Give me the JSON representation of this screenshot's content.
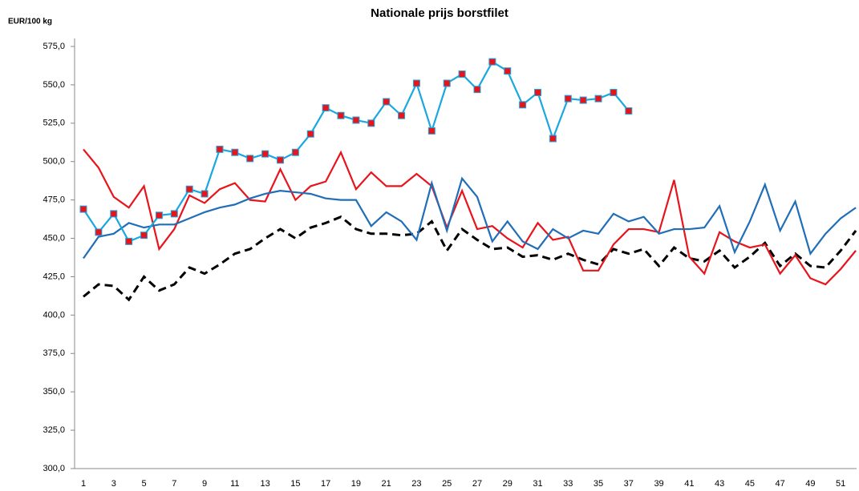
{
  "chart_data": {
    "type": "line",
    "title": "Nationale prijs borstfilet",
    "y_label": "EUR/100 kg",
    "categories": [
      1,
      null,
      3,
      null,
      5,
      null,
      7,
      null,
      9,
      null,
      11,
      null,
      13,
      null,
      15,
      null,
      17,
      null,
      19,
      null,
      21,
      null,
      23,
      null,
      25,
      null,
      27,
      null,
      29,
      null,
      31,
      null,
      33,
      null,
      35,
      null,
      37,
      null,
      39,
      null,
      41,
      null,
      43,
      null,
      45,
      null,
      47,
      null,
      49,
      null,
      51,
      null
    ],
    "ylim": [
      300,
      575
    ],
    "yticks": [
      {
        "value": 300,
        "label": "300,0"
      },
      {
        "value": 325,
        "label": "325,0"
      },
      {
        "value": 350,
        "label": "350,0"
      },
      {
        "value": 375,
        "label": "375,0"
      },
      {
        "value": 400,
        "label": "400,0"
      },
      {
        "value": 425,
        "label": "425,0"
      },
      {
        "value": 450,
        "label": "450,0"
      },
      {
        "value": 475,
        "label": "475,0"
      },
      {
        "value": 500,
        "label": "500,0"
      },
      {
        "value": 525,
        "label": "525,0"
      },
      {
        "value": 550,
        "label": "550,0"
      },
      {
        "value": 575,
        "label": "575,0"
      }
    ],
    "grid": false,
    "series": [
      {
        "color": "#000000",
        "dash": true,
        "values": [
          412,
          420,
          419,
          410,
          425,
          416,
          420,
          431,
          427,
          433,
          440,
          443,
          450,
          456,
          450,
          457,
          460,
          464,
          456,
          453,
          453,
          452,
          453,
          461,
          442,
          456,
          449,
          443,
          444,
          438,
          439,
          436,
          440,
          436,
          433,
          443,
          440,
          443,
          432,
          444,
          437,
          435,
          442,
          431,
          438,
          447,
          432,
          440,
          432,
          431,
          442,
          455
        ]
      },
      {
        "color": "#e8141b",
        "values": [
          508,
          496,
          477,
          470,
          484,
          443,
          456,
          478,
          473,
          482,
          486,
          475,
          474,
          495,
          475,
          484,
          487,
          506,
          482,
          493,
          484,
          484,
          492,
          484,
          457,
          481,
          456,
          458,
          450,
          444,
          460,
          449,
          451,
          429,
          429,
          446,
          456,
          456,
          454,
          488,
          438,
          427,
          454,
          448,
          444,
          446,
          427,
          439,
          424,
          420,
          430,
          442
        ]
      },
      {
        "color": "#1f6eb7",
        "values": [
          437,
          451,
          453,
          460,
          457,
          459,
          459,
          463,
          467,
          470,
          472,
          476,
          479,
          481,
          480,
          479,
          476,
          475,
          475,
          458,
          467,
          461,
          449,
          486,
          455,
          489,
          477,
          448,
          461,
          448,
          443,
          456,
          450,
          455,
          453,
          466,
          461,
          464,
          453,
          456,
          456,
          457,
          471,
          441,
          461,
          485,
          455,
          474,
          440,
          453,
          463,
          470
        ]
      },
      {
        "color": "#1aa7e0",
        "marker": "square",
        "marker_color": "#e8141b",
        "values": [
          469,
          454,
          466,
          448,
          452,
          465,
          466,
          482,
          479,
          508,
          506,
          502,
          505,
          501,
          506,
          518,
          535,
          530,
          527,
          525,
          539,
          530,
          551,
          520,
          551,
          557,
          547,
          565,
          559,
          537,
          545,
          515,
          541,
          540,
          541,
          545,
          533,
          null,
          null,
          null,
          null,
          null,
          null,
          null,
          null,
          null,
          null,
          null,
          null,
          null,
          null,
          null
        ]
      }
    ]
  }
}
